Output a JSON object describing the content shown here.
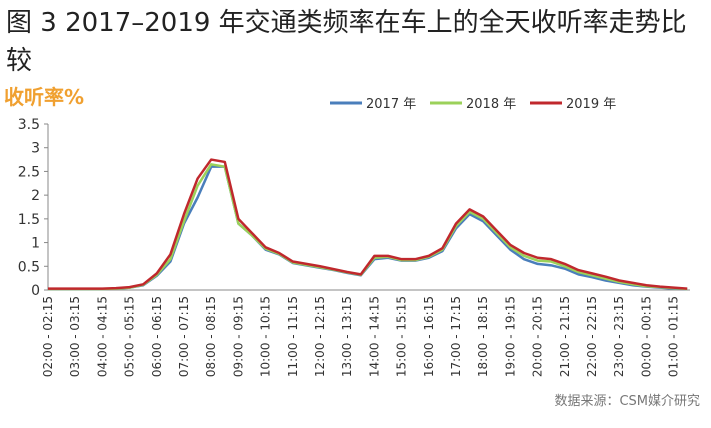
{
  "chart_data": {
    "type": "line",
    "title": "图 3 2017–2019 年交通类频率在车上的全天收听率走势比较",
    "y_label": "收听率%",
    "source": "数据来源：CSM媒介研究",
    "categories": [
      "02:00 - 02:15",
      null,
      "03:00 - 03:15",
      null,
      "04:00 - 04:15",
      null,
      "05:00 - 05:15",
      null,
      "06:00 - 06:15",
      null,
      "07:00 - 07:15",
      null,
      "08:00 - 08:15",
      null,
      "09:00 - 09:15",
      null,
      "10:00 - 10:15",
      null,
      "11:00 - 11:15",
      null,
      "12:00 - 12:15",
      null,
      "13:00 - 13:15",
      null,
      "14:00 - 14:15",
      null,
      "15:00 - 15:15",
      null,
      "16:00 - 16:15",
      null,
      "17:00 - 17:15",
      null,
      "18:00 - 18:15",
      null,
      "19:00 - 19:15",
      null,
      "20:00 - 20:15",
      null,
      "21:00 - 21:15",
      null,
      "22:00 - 22:15",
      null,
      "23:00 - 23:15",
      null,
      "00:00 - 00:15",
      null,
      "01:00 - 01:15",
      null
    ],
    "series": [
      {
        "name": "2017 年",
        "color": "#4a7ebb",
        "values": [
          0.02,
          0.02,
          0.02,
          0.02,
          0.02,
          0.03,
          0.05,
          0.1,
          0.3,
          0.6,
          1.4,
          1.95,
          2.6,
          2.6,
          1.4,
          1.15,
          0.85,
          0.75,
          0.57,
          0.52,
          0.47,
          0.42,
          0.36,
          0.31,
          0.65,
          0.68,
          0.62,
          0.62,
          0.68,
          0.82,
          1.3,
          1.6,
          1.45,
          1.15,
          0.85,
          0.65,
          0.55,
          0.52,
          0.45,
          0.33,
          0.27,
          0.2,
          0.15,
          0.1,
          0.07,
          0.05,
          0.03,
          0.02
        ]
      },
      {
        "name": "2018 年",
        "color": "#9bd15a",
        "values": [
          0.02,
          0.02,
          0.02,
          0.02,
          0.02,
          0.03,
          0.05,
          0.11,
          0.32,
          0.65,
          1.45,
          2.2,
          2.65,
          2.6,
          1.4,
          1.15,
          0.87,
          0.76,
          0.58,
          0.53,
          0.48,
          0.43,
          0.37,
          0.32,
          0.68,
          0.7,
          0.63,
          0.63,
          0.7,
          0.85,
          1.35,
          1.65,
          1.5,
          1.2,
          0.9,
          0.72,
          0.62,
          0.6,
          0.5,
          0.38,
          0.31,
          0.24,
          0.17,
          0.12,
          0.08,
          0.06,
          0.04,
          0.02
        ]
      },
      {
        "name": "2019 年",
        "color": "#c0282d",
        "values": [
          0.03,
          0.03,
          0.03,
          0.03,
          0.03,
          0.04,
          0.06,
          0.12,
          0.35,
          0.75,
          1.6,
          2.35,
          2.75,
          2.7,
          1.5,
          1.2,
          0.9,
          0.78,
          0.6,
          0.55,
          0.5,
          0.44,
          0.38,
          0.33,
          0.72,
          0.72,
          0.65,
          0.65,
          0.72,
          0.88,
          1.4,
          1.7,
          1.55,
          1.25,
          0.95,
          0.78,
          0.68,
          0.65,
          0.55,
          0.42,
          0.35,
          0.28,
          0.2,
          0.15,
          0.1,
          0.07,
          0.05,
          0.03
        ]
      }
    ],
    "ylim": [
      0,
      3.5
    ],
    "yticks": [
      0,
      0.5,
      1,
      1.5,
      2,
      2.5,
      3,
      3.5
    ],
    "grid": false,
    "legend": "top-right"
  }
}
